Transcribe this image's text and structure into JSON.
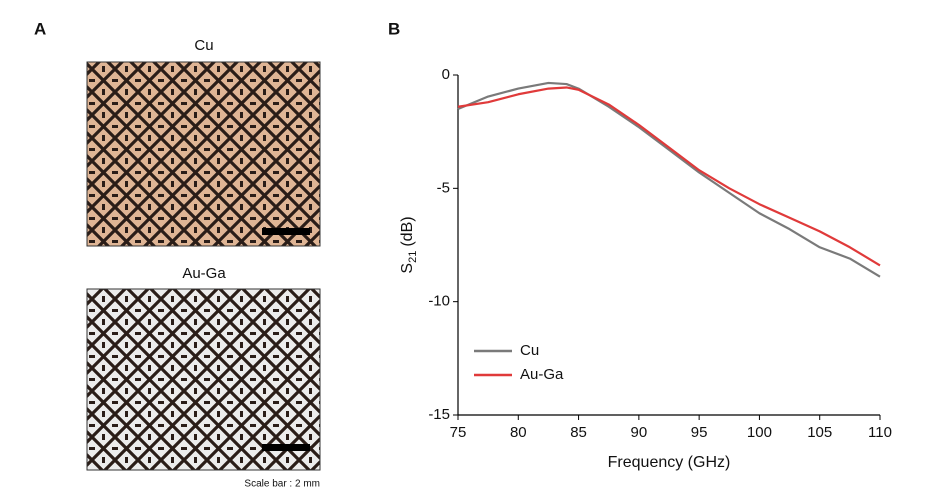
{
  "panels": {
    "a": "A",
    "b": "B"
  },
  "images": [
    {
      "title": "Cu"
    },
    {
      "title": "Au-Ga"
    }
  ],
  "scale_note": "Scale bar : 2 mm",
  "chart_data": {
    "type": "line",
    "xlabel": "Frequency (GHz)",
    "ylabel": [
      "S",
      "21",
      "(dB)"
    ],
    "x": [
      75,
      77.5,
      80,
      82.5,
      84,
      85,
      87.5,
      90,
      92.5,
      95,
      97.5,
      100,
      102.5,
      105,
      107.5,
      110
    ],
    "series": [
      {
        "name": "Cu",
        "color": "#7a7a7a",
        "values": [
          -1.5,
          -0.95,
          -0.6,
          -0.35,
          -0.4,
          -0.6,
          -1.4,
          -2.3,
          -3.3,
          -4.3,
          -5.2,
          -6.1,
          -6.8,
          -7.6,
          -8.1,
          -8.9
        ]
      },
      {
        "name": "Au-Ga",
        "color": "#e03a3a",
        "values": [
          -1.4,
          -1.2,
          -0.85,
          -0.6,
          -0.55,
          -0.65,
          -1.3,
          -2.2,
          -3.2,
          -4.2,
          -5.0,
          -5.7,
          -6.3,
          -6.9,
          -7.6,
          -8.4
        ]
      }
    ],
    "xlim": [
      75,
      110
    ],
    "xticks": [
      75,
      80,
      85,
      90,
      95,
      100,
      105,
      110
    ],
    "ylim": [
      -15,
      0
    ],
    "yticks": [
      0,
      -5,
      -10,
      -15
    ],
    "legend": "lower left"
  }
}
